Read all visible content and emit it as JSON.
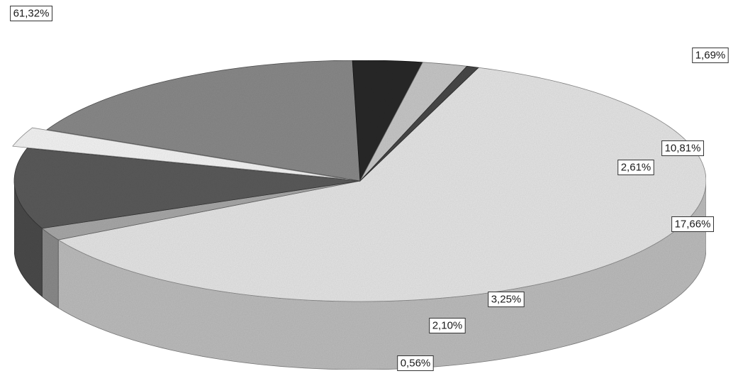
{
  "chart_data": {
    "type": "pie",
    "style": "3d",
    "legend": "none",
    "slices": [
      {
        "label": "61,32%",
        "value": 61.32,
        "color": "#e6e6e6"
      },
      {
        "label": "1,69%",
        "value": 1.69,
        "color": "#a9a9a9"
      },
      {
        "label": "10,81%",
        "value": 10.81,
        "color": "#5c5c5c"
      },
      {
        "label": "2,61%",
        "value": 2.61,
        "color": "#f5f5f5"
      },
      {
        "label": "17,66%",
        "value": 17.66,
        "color": "#8a8a8a"
      },
      {
        "label": "3,25%",
        "value": 3.25,
        "color": "#2b2b2b"
      },
      {
        "label": "2,10%",
        "value": 2.1,
        "color": "#c8c8c8"
      },
      {
        "label": "0,56%",
        "value": 0.56,
        "color": "#4a4a4a"
      }
    ]
  }
}
